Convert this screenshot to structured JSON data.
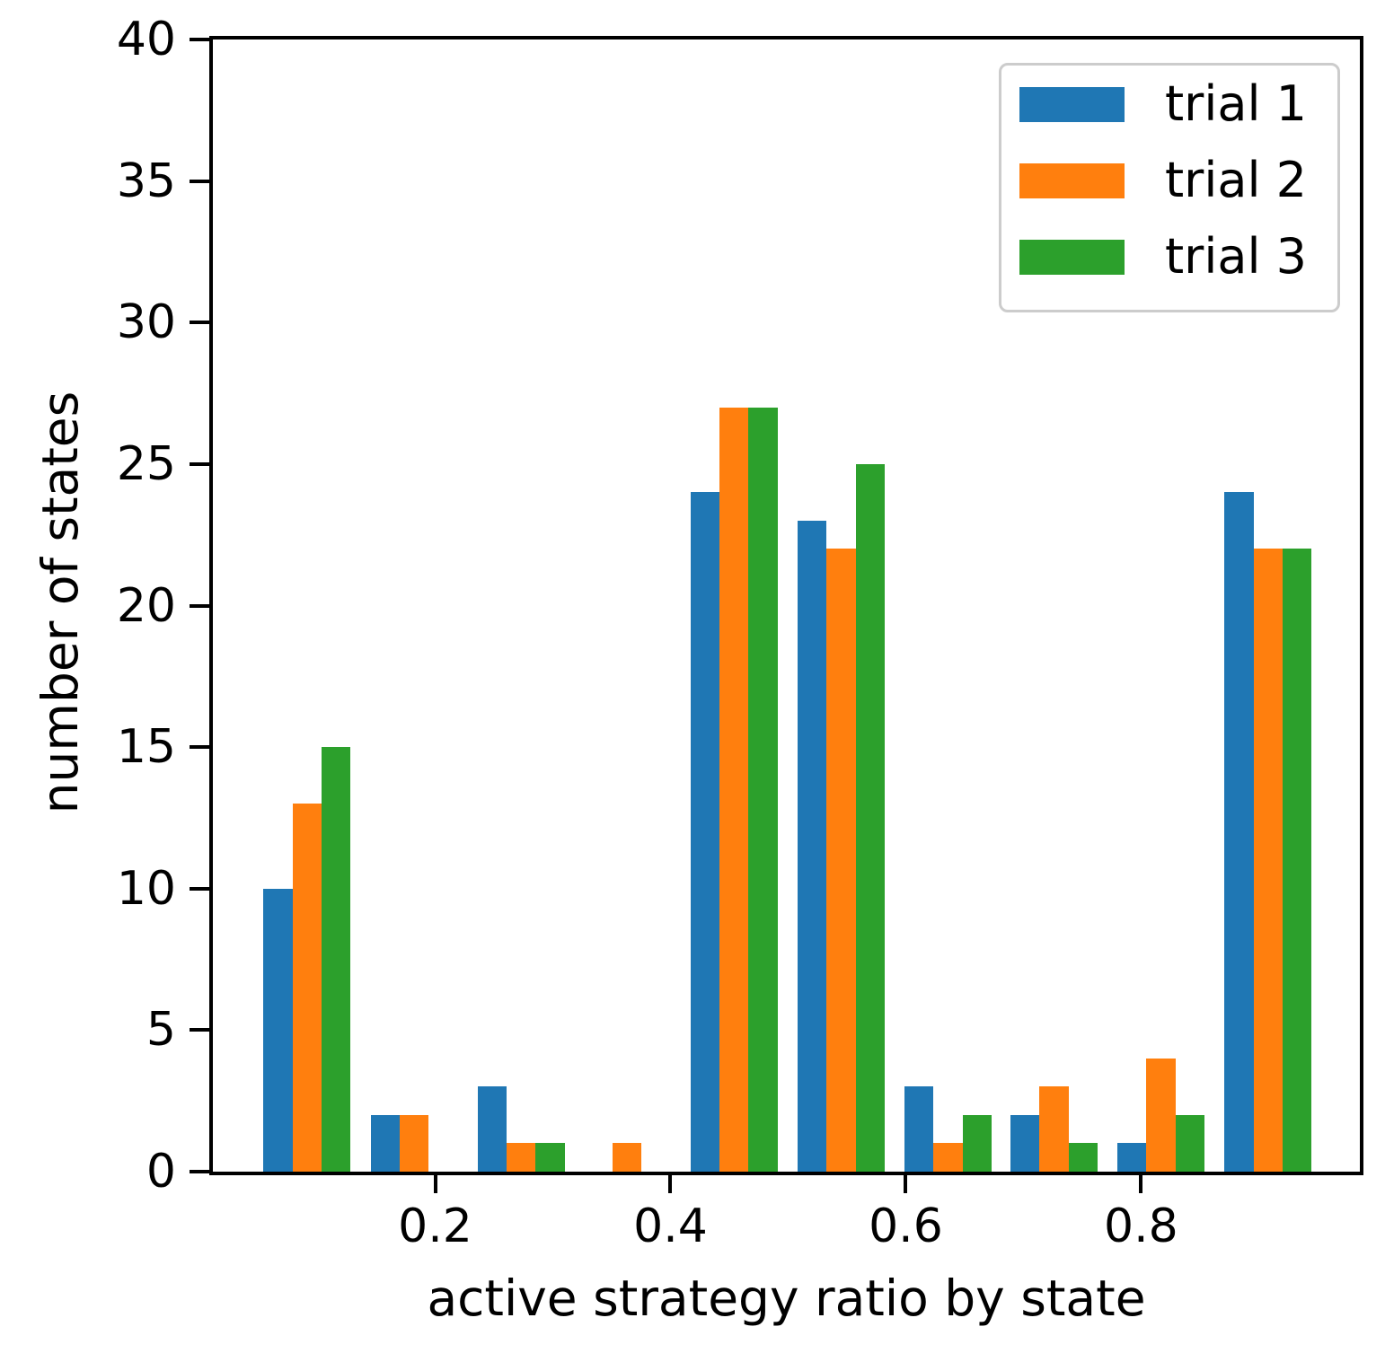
{
  "chart_data": {
    "type": "bar",
    "subtype": "grouped-histogram",
    "title": "",
    "xlabel": "active strategy ratio by state",
    "ylabel": "number of states",
    "bin_centers": [
      0.091,
      0.182,
      0.273,
      0.363,
      0.454,
      0.545,
      0.636,
      0.726,
      0.817,
      0.908
    ],
    "bin_width": 0.0907,
    "group_width": 0.074,
    "series": [
      {
        "name": "trial 1",
        "color": "#1f77b4",
        "values": [
          10,
          2,
          3,
          0,
          24,
          23,
          3,
          2,
          1,
          24
        ]
      },
      {
        "name": "trial 2",
        "color": "#ff7f0e",
        "values": [
          13,
          2,
          1,
          1,
          27,
          22,
          1,
          3,
          4,
          22
        ]
      },
      {
        "name": "trial 3",
        "color": "#2ca02c",
        "values": [
          15,
          0,
          1,
          0,
          27,
          25,
          2,
          1,
          2,
          22
        ]
      }
    ],
    "xlim": [
      0.011,
      0.986
    ],
    "ylim": [
      0,
      40
    ],
    "xticks": [
      0.2,
      0.4,
      0.6,
      0.8
    ],
    "xtick_labels": [
      "0.2",
      "0.4",
      "0.6",
      "0.8"
    ],
    "yticks": [
      0,
      5,
      10,
      15,
      20,
      25,
      30,
      35,
      40
    ],
    "ytick_labels": [
      "0",
      "5",
      "10",
      "15",
      "20",
      "25",
      "30",
      "35",
      "40"
    ],
    "legend_position": "upper right",
    "grid": false,
    "background_color": "#ffffff",
    "axis_color": "#000000"
  }
}
